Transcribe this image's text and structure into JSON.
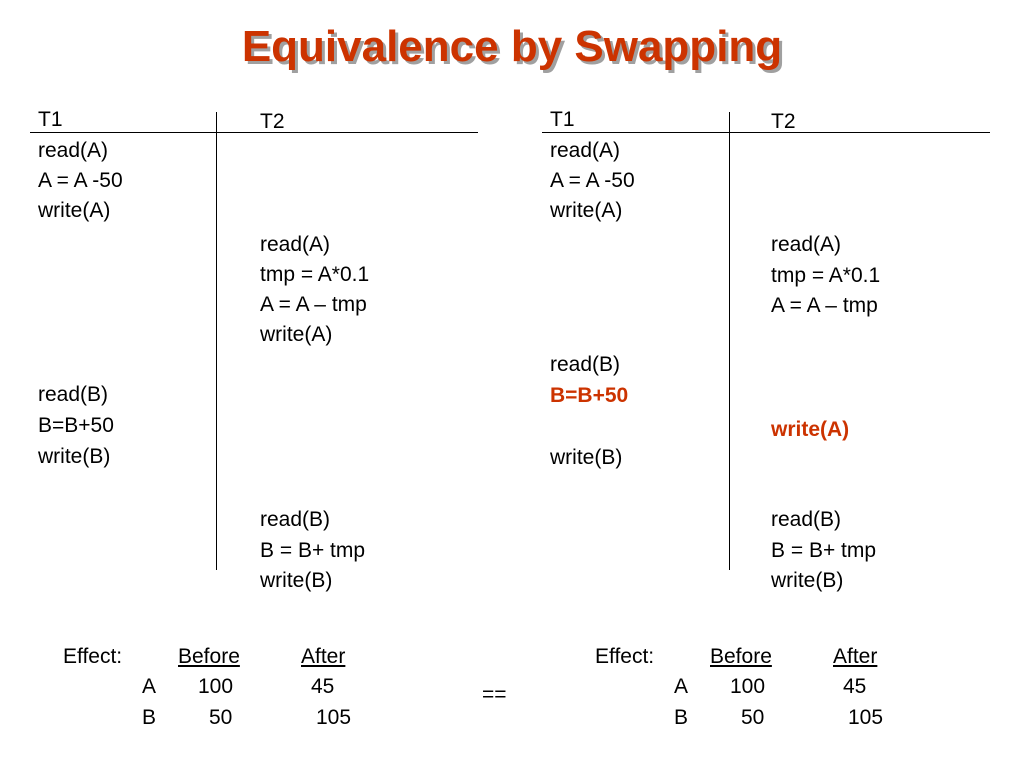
{
  "title": "Equivalence by Swapping",
  "left": {
    "t1_header": "T1",
    "t2_header": "T2",
    "t1_ops": [
      "read(A)",
      "A = A -50",
      "write(A)",
      "read(B)",
      "B=B+50",
      "write(B)"
    ],
    "t2_ops": [
      "read(A)",
      "tmp = A*0.1",
      "A = A – tmp",
      "write(A)",
      "read(B)",
      "B = B+ tmp",
      "write(B)"
    ],
    "effect": {
      "label": "Effect:",
      "before_header": "Before",
      "after_header": "After",
      "rows": [
        {
          "name": "A",
          "before": "100",
          "after": "45"
        },
        {
          "name": "B",
          "before": "50",
          "after": "105"
        }
      ]
    }
  },
  "equals": "==",
  "right": {
    "t1_header": "T1",
    "t2_header": "T2",
    "t1_ops": [
      "read(A)",
      "A = A -50",
      "write(A)",
      "read(B)",
      "B=B+50",
      "write(B)"
    ],
    "t2_ops": [
      "read(A)",
      "tmp = A*0.1",
      "A = A – tmp",
      "write(A)",
      "read(B)",
      "B = B+ tmp",
      "write(B)"
    ],
    "highlighted": [
      "B=B+50",
      "write(A)"
    ],
    "highlight_color": "#cc3300",
    "effect": {
      "label": "Effect:",
      "before_header": "Before",
      "after_header": "After",
      "rows": [
        {
          "name": "A",
          "before": "100",
          "after": "45"
        },
        {
          "name": "B",
          "before": "50",
          "after": "105"
        }
      ]
    }
  }
}
